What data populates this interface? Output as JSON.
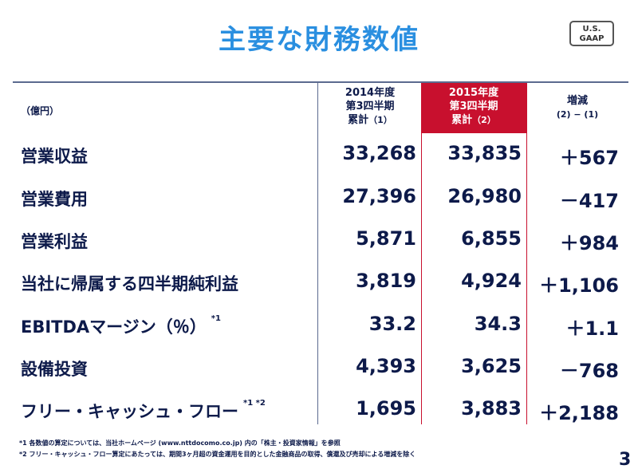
{
  "title": "主要な財務数値",
  "badge": {
    "line1": "U.S.",
    "line2": "GAAP"
  },
  "unit": "（億円）",
  "columns": {
    "c2014": {
      "line1": "2014年度",
      "line2": "第3四半期",
      "line3": "累計",
      "tag": "（1）"
    },
    "c2015": {
      "line1": "2015年度",
      "line2": "第3四半期",
      "line3": "累計",
      "tag": "（2）"
    },
    "diff": {
      "line1": "増減",
      "line2": "(2) − (1)"
    }
  },
  "rows": [
    {
      "label": "営業収益",
      "note": "",
      "v2014": "33,268",
      "v2015": "33,835",
      "diff": "＋567"
    },
    {
      "label": "営業費用",
      "note": "",
      "v2014": "27,396",
      "v2015": "26,980",
      "diff": "－417"
    },
    {
      "label": "営業利益",
      "note": "",
      "v2014": "5,871",
      "v2015": "6,855",
      "diff": "＋984"
    },
    {
      "label": "当社に帰属する四半期純利益",
      "note": "",
      "v2014": "3,819",
      "v2015": "4,924",
      "diff": "＋1,106"
    },
    {
      "label": "EBITDAマージン（％）",
      "note": "*1",
      "v2014": "33.2",
      "v2015": "34.3",
      "diff": "＋1.1"
    },
    {
      "label": "設備投資",
      "note": "",
      "v2014": "4,393",
      "v2015": "3,625",
      "diff": "－768"
    },
    {
      "label": "フリー・キャッシュ・フロー",
      "note": "*1 *2",
      "v2014": "1,695",
      "v2015": "3,883",
      "diff": "＋2,188"
    }
  ],
  "footnotes": [
    "*1 各数値の算定については、当社ホームページ (www.nttdocomo.co.jp) 内の「株主・投資家情報」を参照",
    "*2 フリー・キャッシュ・フロー算定にあたっては、期間3ヶ月超の資金運用を目的とした金融商品の取得、償還及び売却による増減を除く"
  ],
  "page_number": "3",
  "colors": {
    "title": "#2a8fe0",
    "highlight": "#c8102e",
    "text": "#0d1a4a"
  }
}
